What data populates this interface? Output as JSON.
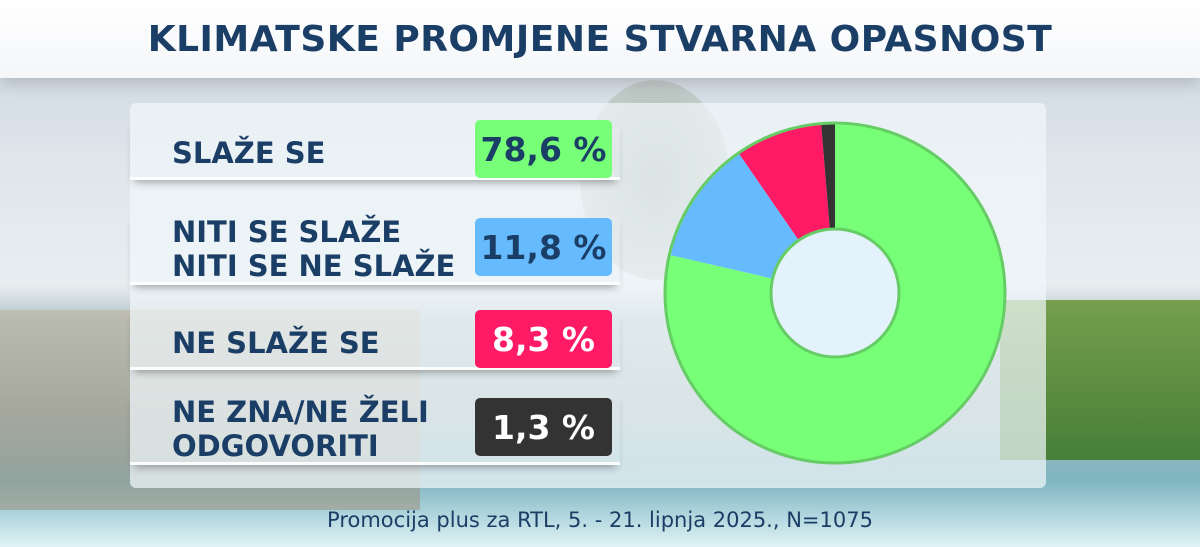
{
  "title": "KLIMATSKE PROMJENE STVARNA OPASNOST",
  "footer": "Promocija plus za RTL, 5. - 21. lipnja 2025., N=1075",
  "chart_data": {
    "type": "pie",
    "donut": true,
    "categories": [
      "SLAŽE SE",
      "NITI SE SLAŽE\nNITI SE NE SLAŽE",
      "NE SLAŽE SE",
      "NE ZNA/NE ŽELI\nODGOVORITI"
    ],
    "values": [
      78.6,
      11.8,
      8.3,
      1.3
    ],
    "labels": [
      "78,6 %",
      "11,8 %",
      "8,3 %",
      "1,3 %"
    ],
    "colors": [
      "#77ff77",
      "#66bbff",
      "#ff1a66",
      "#333333"
    ],
    "text_colors": [
      "#1b3e66",
      "#1b3e66",
      "#ffffff",
      "#ffffff"
    ]
  }
}
